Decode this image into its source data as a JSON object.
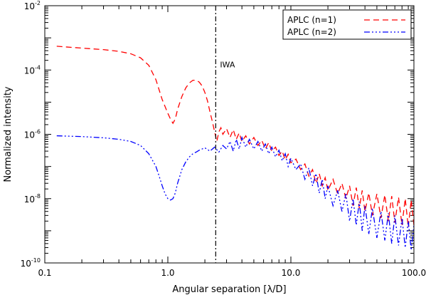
{
  "chart_data": {
    "type": "line",
    "title": "",
    "xlabel": "Angular separation [λ/D]",
    "ylabel": "Normalized intensity",
    "xscale": "log",
    "yscale": "log",
    "xlim": [
      0.1,
      100
    ],
    "ylim": [
      1e-10,
      0.01
    ],
    "x_ticks": [
      {
        "value": 0.1,
        "label": "0.1"
      },
      {
        "value": 1,
        "label": "1.0"
      },
      {
        "value": 10,
        "label": "10.0"
      },
      {
        "value": 100,
        "label": "100.0"
      }
    ],
    "y_ticks": [
      {
        "value": 1e-10,
        "base": "10",
        "exp": "-10"
      },
      {
        "value": 1e-08,
        "base": "10",
        "exp": "-8"
      },
      {
        "value": 1e-06,
        "base": "10",
        "exp": "-6"
      },
      {
        "value": 0.0001,
        "base": "10",
        "exp": "-4"
      },
      {
        "value": 0.01,
        "base": "10",
        "exp": "-2"
      }
    ],
    "grid": false,
    "legend_position": "top-right",
    "series": [
      {
        "name": "APLC (n=1)",
        "color": "#ff0000",
        "dash": "8,5",
        "x": [
          0.125,
          0.15,
          0.2,
          0.3,
          0.4,
          0.5,
          0.6,
          0.7,
          0.8,
          0.9,
          1.0,
          1.05,
          1.1,
          1.15,
          1.2,
          1.3,
          1.4,
          1.5,
          1.6,
          1.7,
          1.8,
          1.9,
          2.0,
          2.1,
          2.2,
          2.3,
          2.4,
          2.5,
          2.6,
          2.7,
          2.8,
          3.0,
          3.2,
          3.4,
          3.6,
          3.8,
          4.0,
          4.3,
          4.6,
          5.0,
          5.4,
          5.8,
          6.2,
          6.6,
          7.0,
          7.5,
          8.0,
          8.5,
          9.0,
          9.5,
          10.0,
          11,
          12,
          13,
          14,
          15,
          16,
          17,
          18,
          19,
          20,
          22,
          24,
          26,
          28,
          30,
          32,
          34,
          36,
          38,
          40,
          43,
          46,
          50,
          54,
          58,
          62,
          66,
          70,
          75,
          80,
          85,
          90,
          95,
          100
        ],
        "y": [
          0.00055,
          0.00052,
          0.00048,
          0.00043,
          0.00038,
          0.00032,
          0.00024,
          0.00014,
          5e-05,
          1.2e-05,
          4.5e-06,
          3e-06,
          2.2e-06,
          3e-06,
          6e-06,
          1.5e-05,
          2.8e-05,
          4e-05,
          4.8e-05,
          4.8e-05,
          4.2e-05,
          3.2e-05,
          2e-05,
          1.1e-05,
          5e-06,
          2.5e-06,
          1.2e-06,
          6e-07,
          1.2e-06,
          1.6e-06,
          1e-06,
          1.5e-06,
          8e-07,
          1.4e-06,
          7e-07,
          1.1e-06,
          6e-07,
          9e-07,
          5e-07,
          8e-07,
          4.5e-07,
          6.5e-07,
          3.5e-07,
          5.5e-07,
          3e-07,
          4e-07,
          2.2e-07,
          3e-07,
          1.6e-07,
          2.4e-07,
          1.3e-07,
          1.7e-07,
          8e-08,
          1.2e-07,
          5e-08,
          8e-08,
          3e-08,
          6e-08,
          2.5e-08,
          4.5e-08,
          1.8e-08,
          4e-08,
          1.4e-08,
          3e-08,
          1e-08,
          2.5e-08,
          6e-09,
          2.2e-08,
          5e-09,
          1.8e-08,
          4e-09,
          1.5e-08,
          3e-09,
          1.4e-08,
          2.5e-09,
          1.3e-08,
          2e-09,
          1.2e-08,
          1.8e-09,
          1.1e-08,
          1.5e-09,
          1e-08,
          1.3e-09,
          9e-09,
          1.5e-09
        ]
      },
      {
        "name": "APLC (n=2)",
        "color": "#0000ff",
        "dash": "8,3,2,3,2,3,2,3",
        "x": [
          0.125,
          0.15,
          0.2,
          0.3,
          0.4,
          0.5,
          0.6,
          0.7,
          0.8,
          0.85,
          0.9,
          0.95,
          1.0,
          1.05,
          1.1,
          1.15,
          1.2,
          1.3,
          1.4,
          1.5,
          1.6,
          1.7,
          1.8,
          1.9,
          2.0,
          2.2,
          2.4,
          2.6,
          2.8,
          3.0,
          3.2,
          3.4,
          3.6,
          3.8,
          4.0,
          4.3,
          4.6,
          5.0,
          5.4,
          5.8,
          6.2,
          6.6,
          7.0,
          7.5,
          8.0,
          8.5,
          9.0,
          9.5,
          10.0,
          11,
          12,
          13,
          14,
          15,
          16,
          17,
          18,
          19,
          20,
          22,
          24,
          26,
          28,
          30,
          32,
          34,
          36,
          38,
          40,
          43,
          46,
          50,
          54,
          58,
          62,
          66,
          70,
          75,
          80,
          85,
          90,
          95,
          100
        ],
        "y": [
          9e-07,
          8.8e-07,
          8.5e-07,
          7.8e-07,
          7e-07,
          6e-07,
          4.5e-07,
          2.5e-07,
          1e-07,
          5e-08,
          2.5e-08,
          1.4e-08,
          1e-08,
          9e-09,
          1e-08,
          1.5e-08,
          3e-08,
          8e-08,
          1.4e-07,
          2e-07,
          2.5e-07,
          2.8e-07,
          3.2e-07,
          3.5e-07,
          3.8e-07,
          3e-07,
          4e-07,
          2.8e-07,
          4.5e-07,
          3.5e-07,
          6e-07,
          3e-07,
          7e-07,
          3.5e-07,
          8e-07,
          4e-07,
          7e-07,
          3.5e-07,
          6e-07,
          3e-07,
          5e-07,
          2.5e-07,
          4e-07,
          2e-07,
          3.2e-07,
          1.5e-07,
          2.5e-07,
          1e-07,
          1.8e-07,
          8e-08,
          1.2e-07,
          4e-08,
          9e-08,
          2.5e-08,
          6e-08,
          1.5e-08,
          4e-08,
          1e-08,
          2.5e-08,
          6e-09,
          1.8e-08,
          4e-09,
          1.4e-08,
          2e-09,
          1e-08,
          1.5e-09,
          8e-09,
          1e-09,
          6e-09,
          8e-10,
          5e-09,
          6e-10,
          4e-09,
          5e-10,
          3.5e-09,
          4e-10,
          3e-09,
          3.5e-10,
          2.5e-09,
          3e-10,
          2e-09,
          2.5e-10,
          1.5e-09
        ]
      }
    ],
    "annotations": [
      {
        "type": "vline",
        "x": 2.45,
        "label": "IWA",
        "style": "dash-dot",
        "color": "#000000"
      }
    ]
  }
}
